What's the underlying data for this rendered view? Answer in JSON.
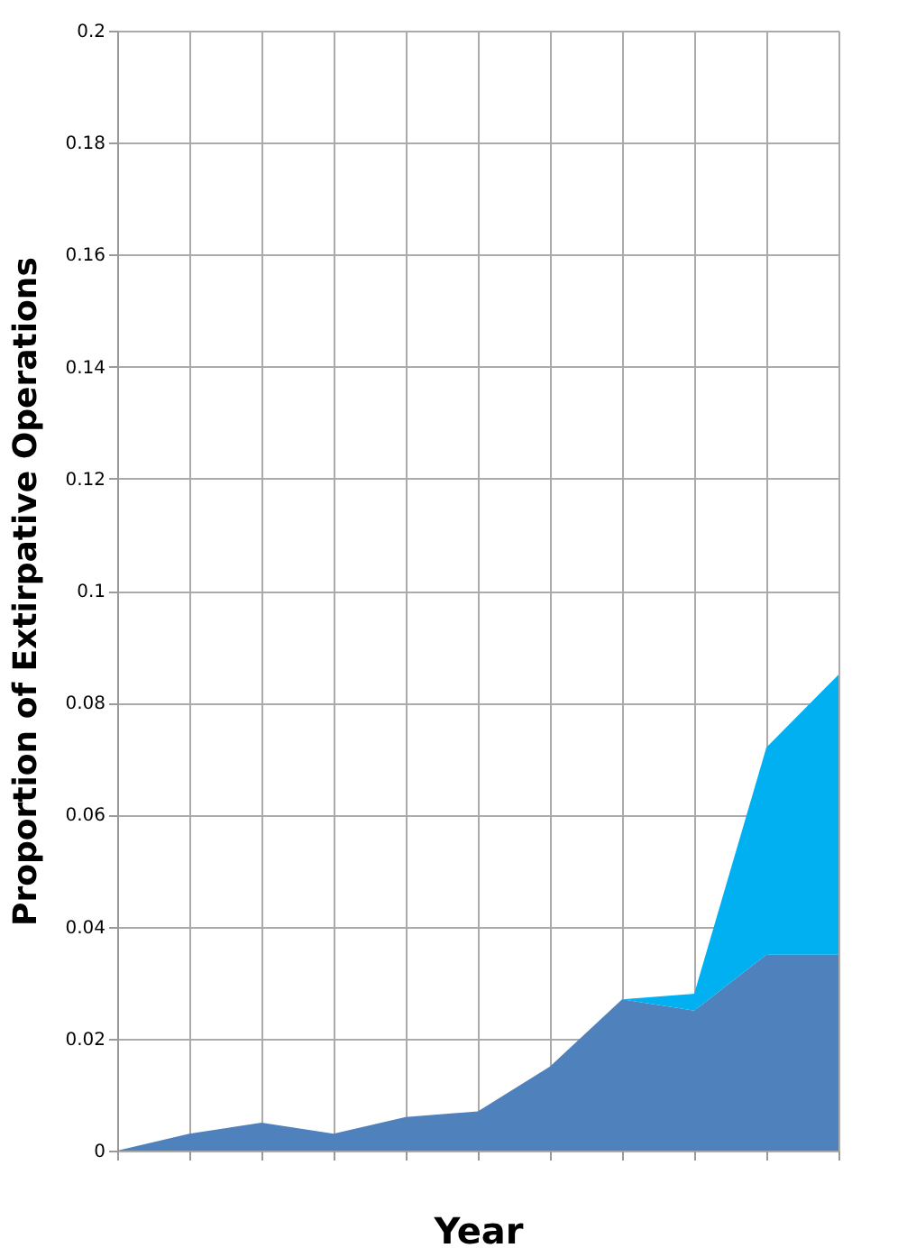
{
  "chart_data": {
    "type": "area",
    "stacked": true,
    "xlabel": "Year",
    "ylabel": "Proportion of Extirpative Operations",
    "categories": [
      null,
      null,
      null,
      null,
      null,
      null,
      null,
      null,
      null,
      null,
      null
    ],
    "series": [
      {
        "color": "#4f81bd",
        "values": [
          0,
          0.003,
          0.005,
          0.003,
          0.006,
          0.007,
          0.015,
          0.027,
          0.025,
          0.035,
          0.035
        ]
      },
      {
        "color": "#00b0f0",
        "values": [
          0,
          0,
          0,
          0,
          0,
          0,
          0,
          0,
          0.003,
          0.037,
          0.05
        ]
      }
    ],
    "ylim": [
      0,
      0.2
    ],
    "yticks": [
      0,
      0.02,
      0.04,
      0.06,
      0.08,
      0.1,
      0.12,
      0.14,
      0.16,
      0.18,
      0.2
    ],
    "grid": true,
    "legend": false
  }
}
